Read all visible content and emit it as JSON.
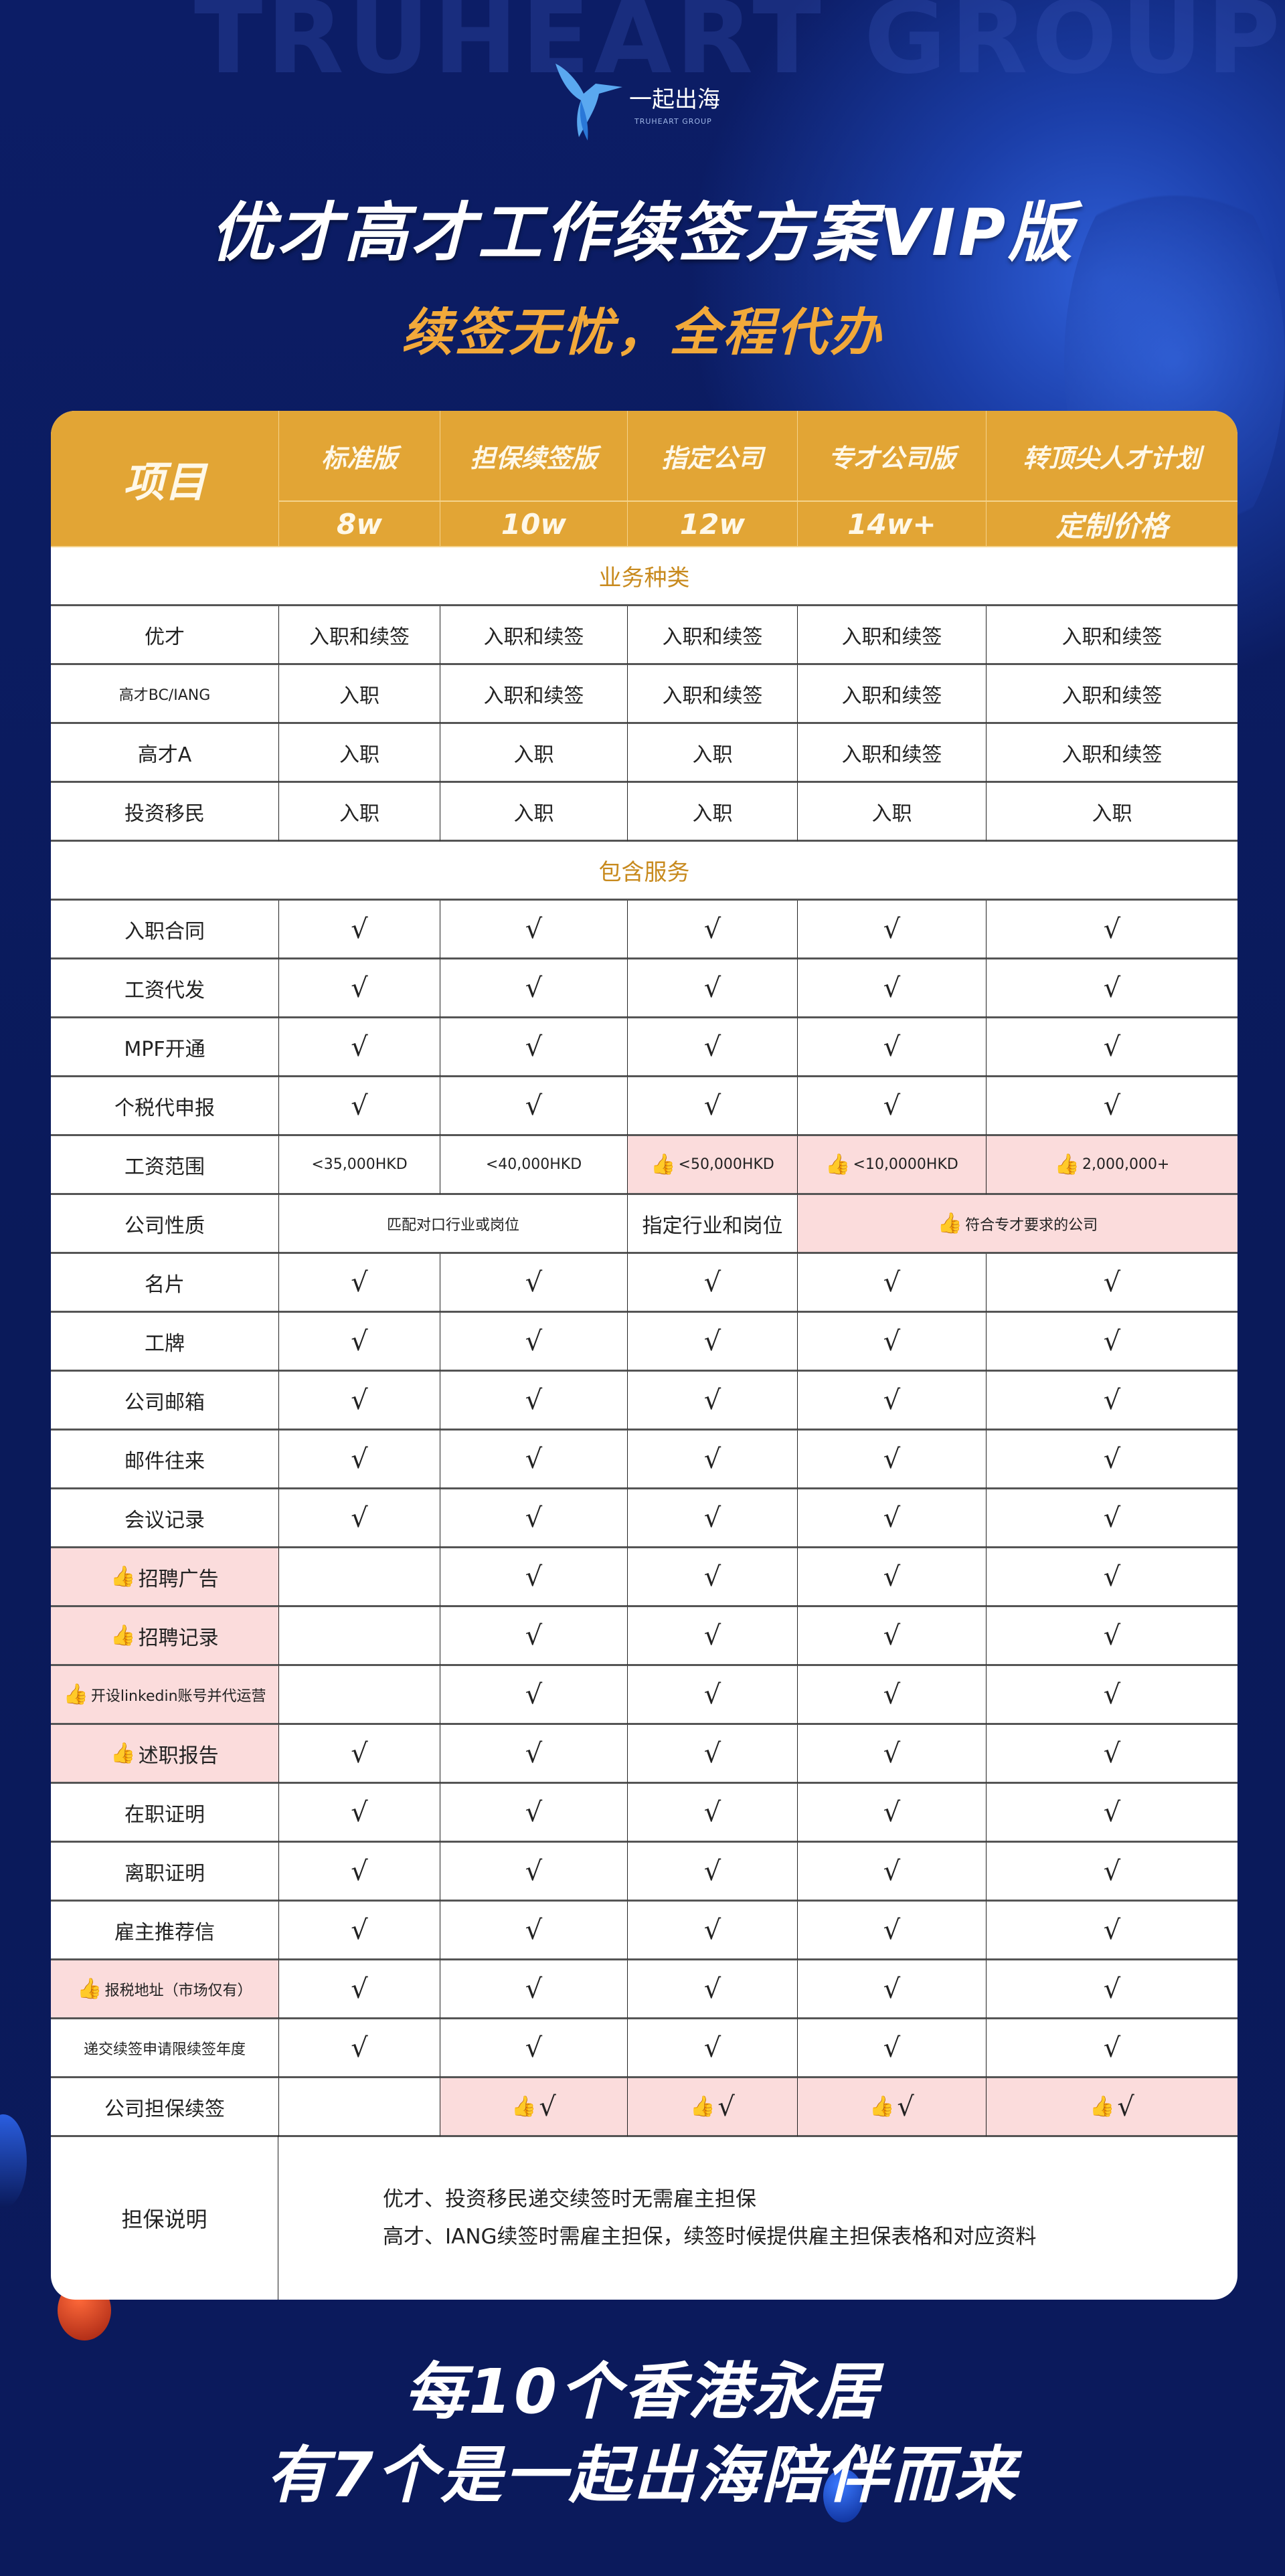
{
  "background_watermark": "TRUHEART GROUP",
  "logo": {
    "name": "一起出海",
    "sub": "TRUHEART GROUP"
  },
  "title": "优才高才工作续签方案VIP版",
  "subtitle": "续签无忧，全程代办",
  "colors": {
    "header": "#e2a535",
    "highlight": "#fbdcdc",
    "section": "#c88a1e",
    "background": "#0b1a5e",
    "subtitle": "#f2a93a"
  },
  "table": {
    "corner_label": "项目",
    "plans": [
      {
        "name": "标准版",
        "price": "8w"
      },
      {
        "name": "担保续签版",
        "price": "10w"
      },
      {
        "name": "指定公司",
        "price": "12w"
      },
      {
        "name": "专才公司版",
        "price": "14w+"
      },
      {
        "name": "转顶尖人才计划",
        "price": "定制价格"
      }
    ],
    "rows": [
      {
        "section": "业务种类"
      },
      {
        "label": "优才",
        "cells": [
          {
            "text": "入职和续签"
          },
          {
            "text": "入职和续签"
          },
          {
            "text": "入职和续签"
          },
          {
            "text": "入职和续签"
          },
          {
            "text": "入职和续签"
          }
        ]
      },
      {
        "label": "高才BC/IANG",
        "cells": [
          {
            "text": "入职"
          },
          {
            "text": "入职和续签"
          },
          {
            "text": "入职和续签"
          },
          {
            "text": "入职和续签"
          },
          {
            "text": "入职和续签"
          }
        ]
      },
      {
        "label": "高才A",
        "cells": [
          {
            "text": "入职"
          },
          {
            "text": "入职"
          },
          {
            "text": "入职"
          },
          {
            "text": "入职和续签"
          },
          {
            "text": "入职和续签"
          }
        ]
      },
      {
        "label": "投资移民",
        "cells": [
          {
            "text": "入职"
          },
          {
            "text": "入职"
          },
          {
            "text": "入职"
          },
          {
            "text": "入职"
          },
          {
            "text": "入职"
          }
        ]
      },
      {
        "section": "包含服务"
      },
      {
        "label": "入职合同",
        "cells": [
          {
            "text": "√"
          },
          {
            "text": "√"
          },
          {
            "text": "√"
          },
          {
            "text": "√"
          },
          {
            "text": "√"
          }
        ]
      },
      {
        "label": "工资代发",
        "cells": [
          {
            "text": "√"
          },
          {
            "text": "√"
          },
          {
            "text": "√"
          },
          {
            "text": "√"
          },
          {
            "text": "√"
          }
        ]
      },
      {
        "label": "MPF开通",
        "cells": [
          {
            "text": "√"
          },
          {
            "text": "√"
          },
          {
            "text": "√"
          },
          {
            "text": "√"
          },
          {
            "text": "√"
          }
        ]
      },
      {
        "label": "个税代申报",
        "cells": [
          {
            "text": "√"
          },
          {
            "text": "√"
          },
          {
            "text": "√"
          },
          {
            "text": "√"
          },
          {
            "text": "√"
          }
        ]
      },
      {
        "label": "工资范围",
        "cells": [
          {
            "text": "<35,000HKD"
          },
          {
            "text": "<40,000HKD"
          },
          {
            "text": "<50,000HKD",
            "hl": true,
            "thumb": true
          },
          {
            "text": "<10,0000HKD",
            "hl": true,
            "thumb": true
          },
          {
            "text": "2,000,000+",
            "hl": true,
            "thumb": true
          }
        ]
      },
      {
        "label": "公司性质",
        "cells": [
          {
            "text": "匹配对口行业或岗位",
            "span": 2
          },
          {
            "text": "指定行业和岗位"
          },
          {
            "text": "符合专才要求的公司",
            "span": 2,
            "hl": true,
            "thumb": true
          }
        ]
      },
      {
        "label": "名片",
        "cells": [
          {
            "text": "√"
          },
          {
            "text": "√"
          },
          {
            "text": "√"
          },
          {
            "text": "√"
          },
          {
            "text": "√"
          }
        ]
      },
      {
        "label": "工牌",
        "cells": [
          {
            "text": "√"
          },
          {
            "text": "√"
          },
          {
            "text": "√"
          },
          {
            "text": "√"
          },
          {
            "text": "√"
          }
        ]
      },
      {
        "label": "公司邮箱",
        "cells": [
          {
            "text": "√"
          },
          {
            "text": "√"
          },
          {
            "text": "√"
          },
          {
            "text": "√"
          },
          {
            "text": "√"
          }
        ]
      },
      {
        "label": "邮件往来",
        "cells": [
          {
            "text": "√"
          },
          {
            "text": "√"
          },
          {
            "text": "√"
          },
          {
            "text": "√"
          },
          {
            "text": "√"
          }
        ]
      },
      {
        "label": "会议记录",
        "cells": [
          {
            "text": "√"
          },
          {
            "text": "√"
          },
          {
            "text": "√"
          },
          {
            "text": "√"
          },
          {
            "text": "√"
          }
        ]
      },
      {
        "label": "招聘广告",
        "hl": true,
        "cells": [
          {
            "text": ""
          },
          {
            "text": "√"
          },
          {
            "text": "√"
          },
          {
            "text": "√"
          },
          {
            "text": "√"
          }
        ]
      },
      {
        "label": "招聘记录",
        "hl": true,
        "cells": [
          {
            "text": ""
          },
          {
            "text": "√"
          },
          {
            "text": "√"
          },
          {
            "text": "√"
          },
          {
            "text": "√"
          }
        ]
      },
      {
        "label": "开设linkedin账号并代运营",
        "hl": true,
        "cells": [
          {
            "text": ""
          },
          {
            "text": "√"
          },
          {
            "text": "√"
          },
          {
            "text": "√"
          },
          {
            "text": "√"
          }
        ]
      },
      {
        "label": "述职报告",
        "hl": true,
        "cells": [
          {
            "text": "√"
          },
          {
            "text": "√"
          },
          {
            "text": "√"
          },
          {
            "text": "√"
          },
          {
            "text": "√"
          }
        ]
      },
      {
        "label": "在职证明",
        "cells": [
          {
            "text": "√"
          },
          {
            "text": "√"
          },
          {
            "text": "√"
          },
          {
            "text": "√"
          },
          {
            "text": "√"
          }
        ]
      },
      {
        "label": "离职证明",
        "cells": [
          {
            "text": "√"
          },
          {
            "text": "√"
          },
          {
            "text": "√"
          },
          {
            "text": "√"
          },
          {
            "text": "√"
          }
        ]
      },
      {
        "label": "雇主推荐信",
        "cells": [
          {
            "text": "√"
          },
          {
            "text": "√"
          },
          {
            "text": "√"
          },
          {
            "text": "√"
          },
          {
            "text": "√"
          }
        ]
      },
      {
        "label": "报税地址（市场仅有）",
        "hl": true,
        "cells": [
          {
            "text": "√"
          },
          {
            "text": "√"
          },
          {
            "text": "√"
          },
          {
            "text": "√"
          },
          {
            "text": "√"
          }
        ]
      },
      {
        "label": "递交续签申请限续签年度",
        "cells": [
          {
            "text": "√"
          },
          {
            "text": "√"
          },
          {
            "text": "√"
          },
          {
            "text": "√"
          },
          {
            "text": "√"
          }
        ]
      },
      {
        "label": "公司担保续签",
        "cells": [
          {
            "text": ""
          },
          {
            "text": "√",
            "hl": true,
            "thumb": true
          },
          {
            "text": "√",
            "hl": true,
            "thumb": true
          },
          {
            "text": "√",
            "hl": true,
            "thumb": true
          },
          {
            "text": "√",
            "hl": true,
            "thumb": true
          }
        ]
      }
    ],
    "note": {
      "label": "担保说明",
      "lines": [
        "优才、投资移民递交续签时无需雇主担保",
        "高才、IANG续签时需雇主担保，续签时候提供雇主担保表格和对应资料"
      ]
    }
  },
  "footer": {
    "line1": "每10个香港永居",
    "line2": "有7个是一起出海陪伴而来"
  }
}
